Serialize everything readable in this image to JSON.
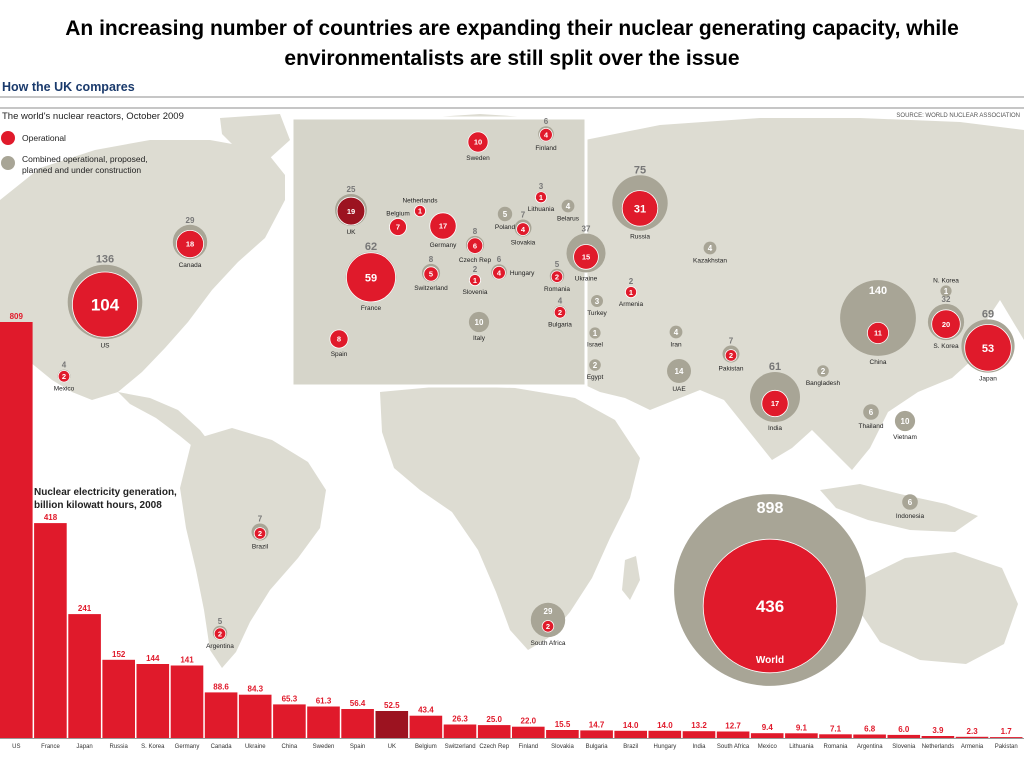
{
  "headline": {
    "line1": "An increasing number of countries are expanding their nuclear generating capacity, while",
    "line2": "environmentalists are still split over the issue"
  },
  "section_label": "How the UK compares",
  "source": "SOURCE: WORLD NUCLEAR ASSOCIATION",
  "colors": {
    "operational": "#e01a2b",
    "uk": "#9c1320",
    "combined": "#a8a596",
    "land": "#dddcd2",
    "sea": "#ffffff",
    "inset_land": "#d6d5ca"
  },
  "chart_data": [
    {
      "type": "bubble-map",
      "title": "The world's nuclear reactors, October 2009",
      "legend": [
        {
          "key": "operational",
          "label_lines": [
            "Operational"
          ]
        },
        {
          "key": "combined",
          "label_lines": [
            "Combined operational, proposed,",
            "planned and under construction"
          ]
        }
      ],
      "reactors": [
        {
          "name": "US",
          "operational": 104,
          "combined": 136
        },
        {
          "name": "Canada",
          "operational": 18,
          "combined": 29
        },
        {
          "name": "Mexico",
          "operational": 2,
          "combined": 4
        },
        {
          "name": "Brazil",
          "operational": 2,
          "combined": 7
        },
        {
          "name": "Argentina",
          "operational": 2,
          "combined": 5
        },
        {
          "name": "UK",
          "operational": 19,
          "combined": 25
        },
        {
          "name": "France",
          "operational": 59,
          "combined": 62
        },
        {
          "name": "Spain",
          "operational": 8,
          "combined": null
        },
        {
          "name": "Belgium",
          "operational": 7,
          "combined": null
        },
        {
          "name": "Netherlands",
          "operational": 1,
          "combined": null
        },
        {
          "name": "Germany",
          "operational": 17,
          "combined": null
        },
        {
          "name": "Switzerland",
          "operational": 5,
          "combined": 8
        },
        {
          "name": "Czech Rep",
          "operational": 6,
          "combined": 8
        },
        {
          "name": "Slovenia",
          "operational": 1,
          "combined": 2
        },
        {
          "name": "Hungary",
          "operational": 4,
          "combined": 6
        },
        {
          "name": "Slovakia",
          "operational": 4,
          "combined": 7
        },
        {
          "name": "Italy",
          "operational": 0,
          "combined": 10
        },
        {
          "name": "Poland",
          "operational": 0,
          "combined": 5
        },
        {
          "name": "Sweden",
          "operational": 10,
          "combined": null
        },
        {
          "name": "Finland",
          "operational": 4,
          "combined": 6
        },
        {
          "name": "Lithuania",
          "operational": 1,
          "combined": 3
        },
        {
          "name": "Belarus",
          "operational": 0,
          "combined": 4
        },
        {
          "name": "Ukraine",
          "operational": 15,
          "combined": 37
        },
        {
          "name": "Romania",
          "operational": 2,
          "combined": 5
        },
        {
          "name": "Bulgaria",
          "operational": 2,
          "combined": 4
        },
        {
          "name": "Russia",
          "operational": 31,
          "combined": 75
        },
        {
          "name": "Armenia",
          "operational": 1,
          "combined": 2
        },
        {
          "name": "Turkey",
          "operational": 0,
          "combined": 3
        },
        {
          "name": "Israel",
          "operational": 0,
          "combined": 1
        },
        {
          "name": "Egypt",
          "operational": 0,
          "combined": 2
        },
        {
          "name": "Iran",
          "operational": 0,
          "combined": 4
        },
        {
          "name": "UAE",
          "operational": 0,
          "combined": 14
        },
        {
          "name": "Pakistan",
          "operational": 2,
          "combined": 7
        },
        {
          "name": "Kazakhstan",
          "operational": 0,
          "combined": 4
        },
        {
          "name": "India",
          "operational": 17,
          "combined": 61
        },
        {
          "name": "Bangladesh",
          "operational": 0,
          "combined": 2
        },
        {
          "name": "China",
          "operational": 11,
          "combined": 140
        },
        {
          "name": "N. Korea",
          "operational": 0,
          "combined": 1
        },
        {
          "name": "S. Korea",
          "operational": 20,
          "combined": 32
        },
        {
          "name": "Japan",
          "operational": 53,
          "combined": 69
        },
        {
          "name": "Thailand",
          "operational": 0,
          "combined": 6
        },
        {
          "name": "Vietnam",
          "operational": 0,
          "combined": 10
        },
        {
          "name": "Indonesia",
          "operational": 0,
          "combined": 6
        },
        {
          "name": "South Africa",
          "operational": 2,
          "combined": 29
        },
        {
          "name": "World",
          "operational": 436,
          "combined": 898
        }
      ]
    },
    {
      "type": "bar",
      "title_lines": [
        "Nuclear electricity generation,",
        "billion kilowatt hours, 2008"
      ],
      "categories": [
        "US",
        "France",
        "Japan",
        "Russia",
        "S. Korea",
        "Germany",
        "Canada",
        "Ukraine",
        "China",
        "Sweden",
        "Spain",
        "UK",
        "Belgium",
        "Switzerland",
        "Czech Rep",
        "Finland",
        "Slovakia",
        "Bulgaria",
        "Brazil",
        "Hungary",
        "India",
        "South Africa",
        "Mexico",
        "Lithuania",
        "Romania",
        "Argentina",
        "Slovenia",
        "Netherlands",
        "Armenia",
        "Pakistan"
      ],
      "values": [
        809,
        418,
        241,
        152,
        144,
        141,
        88.6,
        84.3,
        65.3,
        61.3,
        56.4,
        52.5,
        43.4,
        26.3,
        25.0,
        22.0,
        15.5,
        14.7,
        14.0,
        14.0,
        13.2,
        12.7,
        9.4,
        9.1,
        7.1,
        6.8,
        6.0,
        3.9,
        2.3,
        1.7
      ],
      "value_labels": [
        "809",
        "418",
        "241",
        "152",
        "144",
        "141",
        "88.6",
        "84.3",
        "65.3",
        "61.3",
        "56.4",
        "52.5",
        "43.4",
        "26.3",
        "25.0",
        "22.0",
        "15.5",
        "14.7",
        "14.0",
        "14.0",
        "13.2",
        "12.7",
        "9.4",
        "9.1",
        "7.1",
        "6.8",
        "6.0",
        "3.9",
        "2.3",
        "1.7"
      ],
      "highlight": "UK",
      "ylim": [
        0,
        809
      ]
    }
  ]
}
